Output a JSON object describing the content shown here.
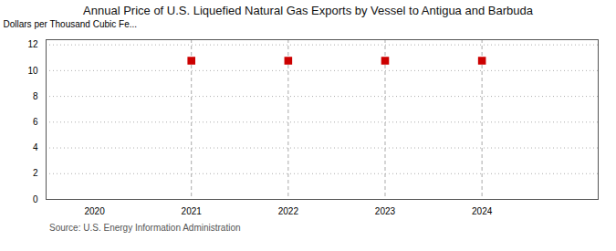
{
  "chart_data": {
    "type": "scatter",
    "title": "Annual Price of U.S. Liquefied Natural Gas Exports by Vessel to Antigua and Barbuda",
    "ylabel": "Dollars per Thousand Cubic Fe...",
    "annotation": "Source: U.S. Energy Information Administration",
    "x": [
      2021,
      2022,
      2023,
      2024
    ],
    "values": [
      10.77,
      10.77,
      10.77,
      10.77
    ],
    "color": "#cc0000",
    "marker": "square",
    "xlim": [
      2019.5,
      2025.2
    ],
    "ylim": [
      0,
      12.4
    ],
    "xticks": [
      2020,
      2021,
      2022,
      2023,
      2024
    ],
    "yticks": [
      0,
      2,
      4,
      6,
      8,
      10,
      12
    ],
    "grid": true
  }
}
